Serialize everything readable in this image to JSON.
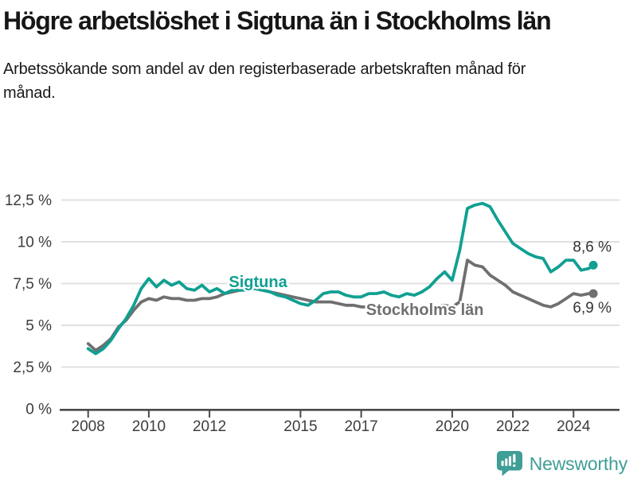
{
  "footer": {
    "brand": "Newsworthy"
  },
  "colors": {
    "sigtuna": "#10a092",
    "stockholm": "#6f6f6f",
    "grid": "#e0e0e0",
    "axis": "#4a4a4a",
    "tick_label": "#3d3d3d",
    "value_label": "#333333",
    "logo": "#3f9e96"
  },
  "chart_data": {
    "type": "line",
    "title": "Högre arbetslöshet i Sigtuna än i Stockholms län",
    "subtitle": "Arbetssökande som andel av den registerbaserade arbetskraften månad för månad.",
    "unit": "%",
    "grid": "horizontal-only",
    "legend": "inline-labels-on-lines",
    "xlim": [
      2007.1,
      2025.5
    ],
    "ylim": [
      0,
      13.2
    ],
    "x_ticks": [
      2008,
      2010,
      2012,
      2015,
      2017,
      2020,
      2022,
      2024
    ],
    "x_tick_labels": [
      "2008",
      "2010",
      "2012",
      "2015",
      "2017",
      "2020",
      "2022",
      "2024"
    ],
    "y_ticks": [
      0,
      2.5,
      5,
      7.5,
      10,
      12.5
    ],
    "y_tick_labels": [
      "0 %",
      "2,5 %",
      "5 %",
      "7,5 %",
      "10 %",
      "12,5 %"
    ],
    "x": [
      2008,
      2008.25,
      2008.5,
      2008.75,
      2009,
      2009.25,
      2009.5,
      2009.75,
      2010,
      2010.25,
      2010.5,
      2010.75,
      2011,
      2011.25,
      2011.5,
      2011.75,
      2012,
      2012.25,
      2012.5,
      2012.75,
      2013,
      2013.25,
      2013.5,
      2013.75,
      2014,
      2014.25,
      2014.5,
      2014.75,
      2015,
      2015.25,
      2015.5,
      2015.75,
      2016,
      2016.25,
      2016.5,
      2016.75,
      2017,
      2017.25,
      2017.5,
      2017.75,
      2018,
      2018.25,
      2018.5,
      2018.75,
      2019,
      2019.25,
      2019.5,
      2019.75,
      2020,
      2020.25,
      2020.5,
      2020.75,
      2021,
      2021.25,
      2021.5,
      2021.75,
      2022,
      2022.25,
      2022.5,
      2022.75,
      2023,
      2023.25,
      2023.5,
      2023.75,
      2024,
      2024.25,
      2024.5,
      2024.65
    ],
    "series": [
      {
        "name": "Sigtuna",
        "color": "#10a092",
        "end_label": "8,6 %",
        "name_label_at": {
          "x": 2013.6,
          "y": 7.62
        },
        "values": [
          3.6,
          3.3,
          3.6,
          4.1,
          4.8,
          5.4,
          6.2,
          7.2,
          7.8,
          7.3,
          7.7,
          7.4,
          7.6,
          7.2,
          7.1,
          7.4,
          7.0,
          7.2,
          6.9,
          7.1,
          7.1,
          7.1,
          7.2,
          7.1,
          7.0,
          6.8,
          6.7,
          6.5,
          6.3,
          6.2,
          6.5,
          6.9,
          7.0,
          7.0,
          6.8,
          6.7,
          6.7,
          6.9,
          6.9,
          7.0,
          6.8,
          6.7,
          6.9,
          6.8,
          7.0,
          7.3,
          7.8,
          8.2,
          7.7,
          9.5,
          12.0,
          12.2,
          12.3,
          12.1,
          11.3,
          10.6,
          9.9,
          9.6,
          9.3,
          9.1,
          9.0,
          8.2,
          8.5,
          8.9,
          8.9,
          8.3,
          8.4,
          8.6
        ]
      },
      {
        "name": "Stockholms län",
        "color": "#6f6f6f",
        "end_label": "6,9 %",
        "name_label_at": {
          "x": 2019.1,
          "y": 5.95
        },
        "values": [
          3.9,
          3.5,
          3.8,
          4.2,
          4.9,
          5.3,
          5.9,
          6.4,
          6.6,
          6.5,
          6.7,
          6.6,
          6.6,
          6.5,
          6.5,
          6.6,
          6.6,
          6.7,
          6.9,
          7.0,
          7.1,
          7.3,
          7.2,
          7.1,
          7.0,
          6.9,
          6.8,
          6.7,
          6.6,
          6.5,
          6.4,
          6.4,
          6.4,
          6.3,
          6.2,
          6.2,
          6.1,
          6.1,
          6.0,
          6.0,
          5.9,
          5.9,
          5.9,
          6.0,
          6.0,
          6.0,
          6.1,
          6.2,
          6.1,
          6.4,
          8.9,
          8.6,
          8.5,
          8.0,
          7.7,
          7.4,
          7.0,
          6.8,
          6.6,
          6.4,
          6.2,
          6.1,
          6.3,
          6.6,
          6.9,
          6.8,
          6.9,
          6.9
        ]
      }
    ]
  }
}
